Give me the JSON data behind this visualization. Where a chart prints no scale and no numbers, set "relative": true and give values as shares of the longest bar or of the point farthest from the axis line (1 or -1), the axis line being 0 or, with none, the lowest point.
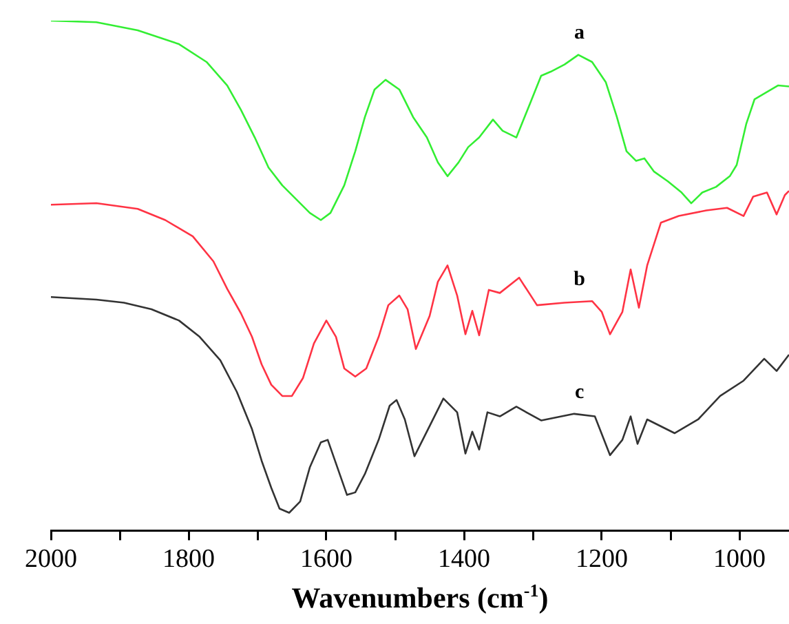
{
  "chart_data": {
    "type": "line",
    "relative": true,
    "xlabel": "Wavenumbers (cm$^{-1}$)",
    "xlim": [
      2000,
      928
    ],
    "xticks": [
      2000,
      {
        "value": 1900,
        "label": null
      },
      1800,
      {
        "value": 1700,
        "label": null
      },
      1600,
      {
        "value": 1500,
        "label": null
      },
      1400,
      {
        "value": 1300,
        "label": null
      },
      1200,
      {
        "value": 1100,
        "label": null
      },
      1000
    ],
    "grid": false,
    "legend": false,
    "series": [
      {
        "name": "a",
        "color": "#33ee33",
        "x": [
          2000,
          1934,
          1874,
          1814,
          1774,
          1744,
          1724,
          1704,
          1684,
          1664,
          1644,
          1624,
          1608,
          1594,
          1574,
          1558,
          1544,
          1530,
          1514,
          1494,
          1474,
          1454,
          1438,
          1424,
          1408,
          1394,
          1378,
          1358,
          1344,
          1324,
          1304,
          1288,
          1274,
          1254,
          1234,
          1214,
          1194,
          1178,
          1164,
          1150,
          1138,
          1124,
          1104,
          1084,
          1070,
          1054,
          1034,
          1014,
          1004,
          990,
          978,
          964,
          944,
          928
        ],
        "values": [
          1.0,
          0.997,
          0.981,
          0.954,
          0.919,
          0.873,
          0.825,
          0.771,
          0.712,
          0.677,
          0.65,
          0.623,
          0.609,
          0.623,
          0.677,
          0.744,
          0.811,
          0.865,
          0.884,
          0.865,
          0.811,
          0.771,
          0.722,
          0.695,
          0.722,
          0.752,
          0.771,
          0.806,
          0.784,
          0.771,
          0.838,
          0.892,
          0.9,
          0.914,
          0.933,
          0.919,
          0.879,
          0.811,
          0.744,
          0.725,
          0.73,
          0.704,
          0.685,
          0.663,
          0.642,
          0.663,
          0.674,
          0.695,
          0.717,
          0.798,
          0.846,
          0.857,
          0.873,
          0.871
        ]
      },
      {
        "name": "b",
        "color": "#ff3344",
        "x": [
          2000,
          1934,
          1874,
          1834,
          1794,
          1764,
          1744,
          1724,
          1708,
          1694,
          1680,
          1664,
          1650,
          1634,
          1618,
          1600,
          1586,
          1574,
          1558,
          1542,
          1524,
          1510,
          1494,
          1482,
          1470,
          1450,
          1438,
          1424,
          1410,
          1398,
          1388,
          1378,
          1364,
          1348,
          1320,
          1294,
          1254,
          1214,
          1200,
          1188,
          1170,
          1158,
          1146,
          1134,
          1114,
          1088,
          1048,
          1018,
          994,
          980,
          960,
          946,
          934,
          928
        ],
        "values": [
          0.639,
          0.642,
          0.631,
          0.609,
          0.577,
          0.528,
          0.474,
          0.426,
          0.38,
          0.326,
          0.286,
          0.264,
          0.264,
          0.299,
          0.367,
          0.412,
          0.38,
          0.318,
          0.302,
          0.318,
          0.38,
          0.442,
          0.461,
          0.434,
          0.356,
          0.421,
          0.488,
          0.52,
          0.461,
          0.385,
          0.431,
          0.383,
          0.472,
          0.466,
          0.496,
          0.442,
          0.447,
          0.45,
          0.429,
          0.385,
          0.429,
          0.512,
          0.437,
          0.52,
          0.604,
          0.617,
          0.628,
          0.633,
          0.617,
          0.655,
          0.663,
          0.62,
          0.658,
          0.666
        ]
      },
      {
        "name": "c",
        "color": "#333333",
        "x": [
          2000,
          1934,
          1894,
          1854,
          1814,
          1784,
          1754,
          1730,
          1708,
          1694,
          1680,
          1668,
          1654,
          1638,
          1624,
          1608,
          1598,
          1584,
          1570,
          1558,
          1544,
          1524,
          1508,
          1498,
          1486,
          1472,
          1450,
          1430,
          1410,
          1398,
          1388,
          1378,
          1366,
          1348,
          1324,
          1288,
          1240,
          1210,
          1188,
          1170,
          1158,
          1148,
          1134,
          1094,
          1060,
          1028,
          994,
          964,
          946,
          928
        ],
        "values": [
          0.458,
          0.453,
          0.447,
          0.434,
          0.412,
          0.38,
          0.334,
          0.272,
          0.199,
          0.137,
          0.084,
          0.043,
          0.035,
          0.057,
          0.124,
          0.173,
          0.178,
          0.124,
          0.07,
          0.075,
          0.111,
          0.178,
          0.245,
          0.256,
          0.218,
          0.146,
          0.205,
          0.259,
          0.232,
          0.151,
          0.194,
          0.159,
          0.232,
          0.224,
          0.243,
          0.216,
          0.229,
          0.224,
          0.148,
          0.178,
          0.224,
          0.17,
          0.218,
          0.191,
          0.218,
          0.264,
          0.294,
          0.337,
          0.313,
          0.345
        ]
      }
    ]
  }
}
